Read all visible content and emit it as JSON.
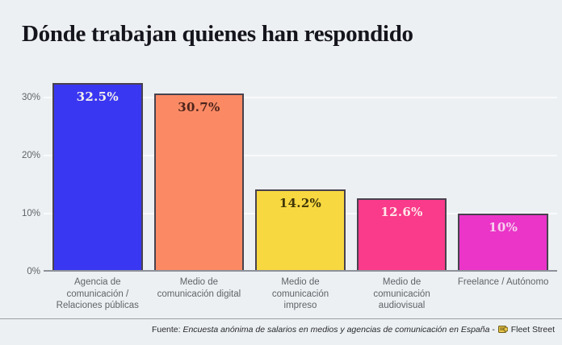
{
  "title": "Dónde trabajan quienes han respondido",
  "chart_data": {
    "type": "bar",
    "title": "Dónde trabajan quienes han respondido",
    "categories": [
      "Agencia de comunicación / Relaciones públicas",
      "Medio de comunicación digital",
      "Medio de comunicación impreso",
      "Medio de comunicación audiovisual",
      "Freelance / Autónomo"
    ],
    "values": [
      32.5,
      30.7,
      14.2,
      12.6,
      10
    ],
    "value_labels": [
      "32.5%",
      "30.7%",
      "14.2%",
      "12.6%",
      "10%"
    ],
    "bar_colors": [
      "#3a37f2",
      "#fb8a64",
      "#f8d840",
      "#fa3a8a",
      "#ea35c8"
    ],
    "label_colors": [
      "#f3f1ec",
      "#4d241c",
      "#3f3608",
      "#ffe8ea",
      "#f7d0ef"
    ],
    "bar_border_color": "#48424e",
    "xlabel": "",
    "ylabel": "",
    "ylim": [
      0,
      33.6
    ],
    "yticks": [
      {
        "value": 0,
        "label": "0%"
      },
      {
        "value": 10,
        "label": "10%"
      },
      {
        "value": 20,
        "label": "20%"
      },
      {
        "value": 30,
        "label": "30%"
      }
    ],
    "grid": true,
    "legend": false,
    "background_color": "#edf0f2",
    "gridline_color": "#f9fafc",
    "axis_color": "#8d929a"
  },
  "footer": {
    "prefix": "Fuente: ",
    "source": "Encuesta anónima de salarios en medios y agencias de comunicación en España",
    "separator": " - ",
    "icon": "newspaper-icon",
    "brand": "Fleet Street"
  }
}
